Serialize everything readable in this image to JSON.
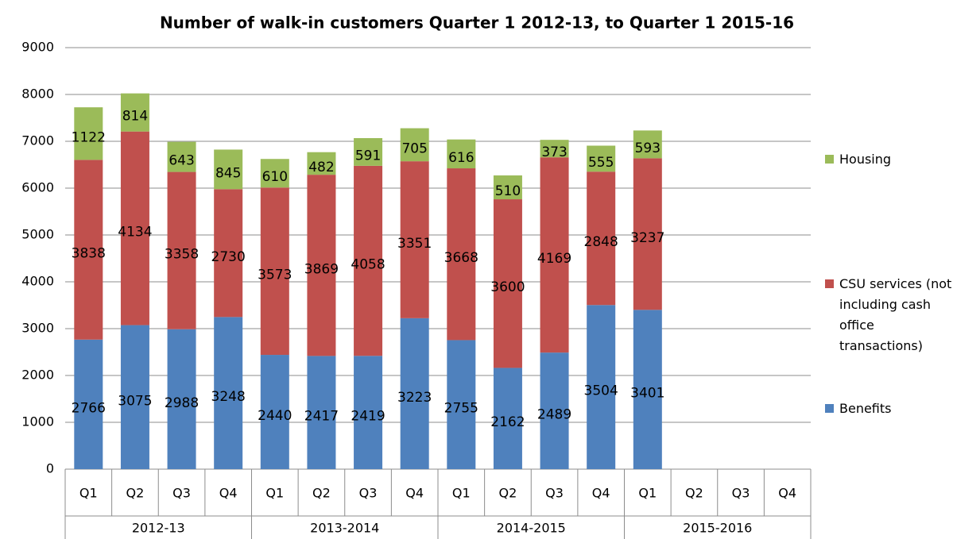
{
  "chart_data": {
    "type": "bar",
    "stacked": true,
    "title": "Number of walk-in customers Quarter 1 2012-13, to Quarter 1 2015-16",
    "categories": [
      "Q1",
      "Q2",
      "Q3",
      "Q4",
      "Q1",
      "Q2",
      "Q3",
      "Q4",
      "Q1",
      "Q2",
      "Q3",
      "Q4",
      "Q1",
      "Q2",
      "Q3",
      "Q4"
    ],
    "category_groups": [
      "2012-13",
      "2013-2014",
      "2014-2015",
      "2015-2016"
    ],
    "series": [
      {
        "name": "Benefits",
        "color": "#4f81bd",
        "values": [
          2766,
          3075,
          2988,
          3248,
          2440,
          2417,
          2419,
          3223,
          2755,
          2162,
          2489,
          3504,
          3401,
          null,
          null,
          null
        ]
      },
      {
        "name": "CSU services (not including cash office transactions)",
        "color": "#c0504d",
        "values": [
          3838,
          4134,
          3358,
          2730,
          3573,
          3869,
          4058,
          3351,
          3668,
          3600,
          4169,
          2848,
          3237,
          null,
          null,
          null
        ]
      },
      {
        "name": "Housing",
        "color": "#9bbb59",
        "values": [
          1122,
          814,
          643,
          845,
          610,
          482,
          591,
          705,
          616,
          510,
          373,
          555,
          593,
          null,
          null,
          null
        ]
      }
    ],
    "ylim": [
      0,
      9000
    ],
    "yticks": [
      0,
      1000,
      2000,
      3000,
      4000,
      5000,
      6000,
      7000,
      8000,
      9000
    ],
    "grid": true
  }
}
